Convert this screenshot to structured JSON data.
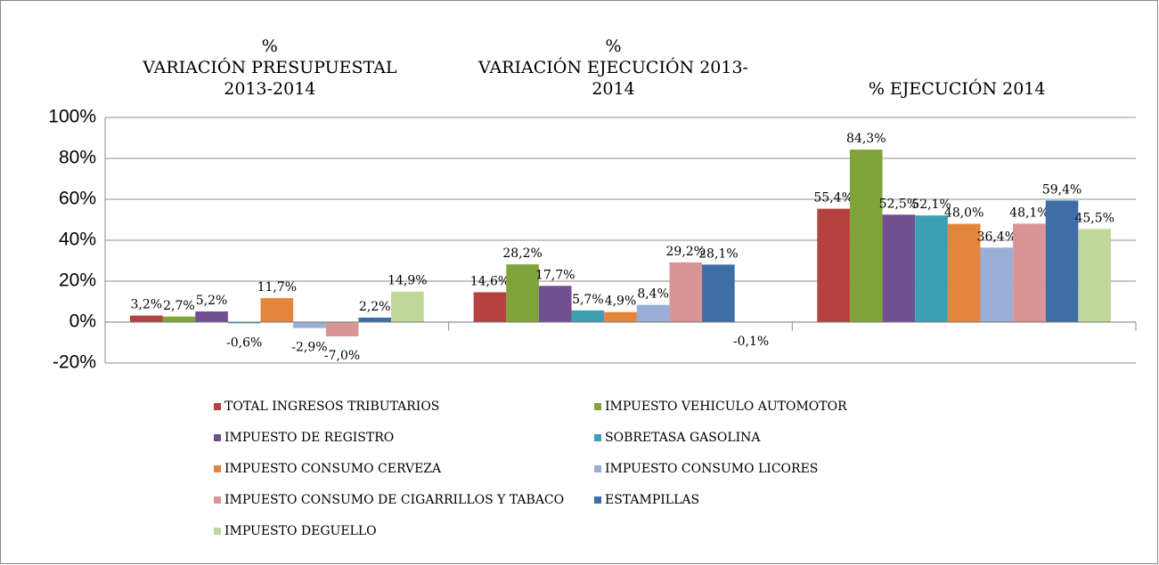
{
  "chart_data": {
    "type": "bar",
    "categories": [
      "%\nVARIACIÓN PRESUPUESTAL\n2013-2014",
      "%\nVARIACIÓN EJECUCIÓN 2013-\n2014",
      "% EJECUCIÓN 2014"
    ],
    "series": [
      {
        "name": "TOTAL INGRESOS TRIBUTARIOS",
        "color": "#b6423f",
        "values": [
          3.2,
          14.6,
          55.4
        ],
        "value_labels": [
          "3,2%",
          "14,6%",
          "55,4%"
        ]
      },
      {
        "name": "IMPUESTO VEHICULO AUTOMOTOR",
        "color": "#80a43b",
        "values": [
          2.7,
          28.2,
          84.3
        ],
        "value_labels": [
          "2,7%",
          "28,2%",
          "84,3%"
        ]
      },
      {
        "name": "IMPUESTO DE REGISTRO",
        "color": "#705091",
        "values": [
          5.2,
          17.7,
          52.5
        ],
        "value_labels": [
          "5,2%",
          "17,7%",
          "52,5%"
        ]
      },
      {
        "name": "SOBRETASA GASOLINA",
        "color": "#3c9fb4",
        "values": [
          -0.6,
          5.7,
          52.1
        ],
        "value_labels": [
          "-0,6%",
          "5,7%",
          "52,1%"
        ]
      },
      {
        "name": "IMPUESTO CONSUMO CERVEZA",
        "color": "#e3853a",
        "values": [
          11.7,
          4.9,
          48.0
        ],
        "value_labels": [
          "11,7%",
          "4,9%",
          "48,0%"
        ]
      },
      {
        "name": "IMPUESTO CONSUMO LICORES",
        "color": "#98aed6",
        "values": [
          -2.9,
          8.4,
          36.4
        ],
        "value_labels": [
          "-2,9%",
          "8,4%",
          "36,4%"
        ]
      },
      {
        "name": "IMPUESTO CONSUMO DE CIGARRILLOS Y TABACO",
        "color": "#d99594",
        "values": [
          -7.0,
          29.2,
          48.1
        ],
        "value_labels": [
          "-7,0%",
          "29,2%",
          "48,1%"
        ]
      },
      {
        "name": "ESTAMPILLAS",
        "color": "#3f6ea7",
        "values": [
          2.2,
          28.1,
          59.4
        ],
        "value_labels": [
          "2,2%",
          "28,1%",
          "59,4%"
        ]
      },
      {
        "name": "IMPUESTO DEGUELLO",
        "color": "#c0d79a",
        "values": [
          14.9,
          -0.1,
          45.5
        ],
        "value_labels": [
          "14,9%",
          "-0,1%",
          "45,5%"
        ]
      }
    ],
    "ylim": [
      -20,
      100
    ],
    "yticks": [
      {
        "value": -20,
        "label": "-20%"
      },
      {
        "value": 0,
        "label": "0%"
      },
      {
        "value": 20,
        "label": "20%"
      },
      {
        "value": 40,
        "label": "40%"
      },
      {
        "value": 60,
        "label": "60%"
      },
      {
        "value": 80,
        "label": "80%"
      },
      {
        "value": 100,
        "label": "100%"
      }
    ],
    "grid": true,
    "legend": "bottom"
  }
}
